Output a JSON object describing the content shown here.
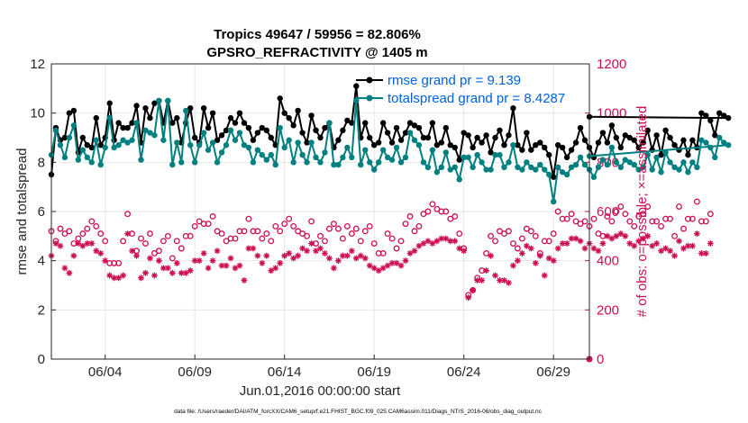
{
  "chart_data": {
    "type": "line",
    "title": "Tropics 49647 / 59956 = 82.806%",
    "subtitle": "GPSRO_REFRACTIVITY @ 1405 m",
    "xlabel": "Jun.01,2016 00:00:00 start",
    "ylabel": "rmse and totalspread",
    "y2label": "# of obs: o=possible; ×=assimilated",
    "xlim": [
      1,
      31
    ],
    "ylim": [
      0,
      12
    ],
    "y2lim": [
      0,
      1200
    ],
    "xticks": [
      {
        "value": 4,
        "label": "06/04"
      },
      {
        "value": 9,
        "label": "06/09"
      },
      {
        "value": 14,
        "label": "06/14"
      },
      {
        "value": 19,
        "label": "06/19"
      },
      {
        "value": 24,
        "label": "06/24"
      },
      {
        "value": 29,
        "label": "06/29"
      }
    ],
    "yticks": [
      "0",
      "2",
      "4",
      "6",
      "8",
      "10",
      "12"
    ],
    "y2ticks": [
      "0",
      "200",
      "400",
      "600",
      "800",
      "1000",
      "1200"
    ],
    "footnote": "data file: /Users/raeder/DAI/ATM_forcXX/CAM6_setup/f.e21.FHIST_BGC.f09_025.CAM6assim.011/Diags_NTrS_2016-06/obs_diag_output.nc",
    "x_start": 1.0,
    "x_step": 0.25,
    "series": [
      {
        "name": "rmse",
        "legend": "rmse grand pr = 9.139",
        "axis": "left",
        "color": "#000000",
        "values": [
          7.5,
          9.4,
          8.9,
          9.0,
          10.0,
          10.1,
          8.4,
          9.0,
          8.7,
          8.6,
          9.8,
          8.7,
          9.0,
          10.4,
          8.9,
          9.6,
          9.4,
          9.4,
          9.6,
          10.3,
          8.8,
          10.2,
          9.8,
          10.4,
          10.5,
          9.6,
          10.5,
          9.6,
          9.8,
          8.8,
          9.6,
          10.2,
          9.0,
          8.8,
          10.2,
          9.4,
          10.0,
          8.9,
          9.1,
          9.3,
          9.8,
          9.6,
          10.0,
          9.6,
          9.4,
          8.9,
          9.2,
          9.4,
          9.3,
          9.0,
          8.7,
          10.6,
          10.0,
          9.8,
          9.5,
          10.1,
          9.2,
          8.8,
          9.9,
          9.3,
          9.0,
          9.4,
          9.6,
          8.6,
          8.9,
          9.3,
          9.7,
          9.6,
          11.1,
          9.0,
          9.6,
          9.0,
          8.7,
          8.8,
          9.6,
          9.2,
          8.8,
          9.4,
          8.9,
          9.2,
          9.6,
          9.5,
          9.4,
          9.0,
          9.0,
          9.6,
          8.7,
          8.8,
          9.4,
          8.7,
          8.6,
          8.1,
          9.2,
          9.1,
          8.6,
          9.0,
          8.8,
          9.1,
          8.4,
          9.0,
          9.3,
          8.7,
          9.1,
          10.2,
          8.7,
          8.5,
          9.2,
          8.5,
          8.7,
          8.8,
          8.6,
          8.3,
          7.4,
          8.7,
          8.6,
          8.2,
          8.5,
          8.8,
          9.4,
          8.9,
          8.6,
          8.2,
          8.8,
          9.2,
          8.8,
          9.5,
          9.0,
          8.6,
          9.1,
          9.0,
          8.9,
          8.6,
          8.8,
          9.3,
          8.5,
          9.1,
          8.3,
          9.3,
          9.0,
          8.7,
          8.5,
          8.9,
          8.3,
          8.9,
          8.6,
          10.0,
          9.9,
          9.7,
          9.1,
          10.0,
          9.9,
          9.8
        ],
        "last_value": 9.85
      },
      {
        "name": "totalspread",
        "legend": "totalspread grand pr = 8.4287",
        "axis": "left",
        "color": "#008080",
        "values": [
          8.3,
          9.3,
          8.7,
          8.2,
          9.0,
          9.5,
          8.1,
          8.5,
          8.2,
          8.0,
          8.9,
          7.9,
          8.6,
          9.8,
          8.6,
          8.7,
          8.9,
          8.8,
          8.9,
          9.6,
          8.1,
          9.3,
          9.2,
          9.1,
          10.5,
          8.9,
          10.5,
          7.9,
          8.8,
          8.0,
          10.1,
          8.7,
          8.0,
          8.7,
          9.2,
          8.5,
          8.8,
          8.0,
          8.4,
          8.7,
          9.3,
          8.9,
          9.2,
          8.7,
          8.6,
          8.0,
          8.5,
          8.3,
          8.1,
          8.3,
          7.9,
          9.4,
          8.6,
          8.9,
          8.0,
          8.8,
          8.3,
          8.0,
          8.8,
          8.2,
          8.0,
          8.4,
          9.6,
          7.9,
          7.9,
          8.2,
          8.6,
          8.2,
          10.5,
          7.9,
          8.5,
          8.0,
          7.7,
          8.0,
          8.5,
          8.2,
          8.1,
          8.6,
          8.0,
          8.2,
          9.2,
          8.9,
          8.7,
          8.0,
          7.8,
          8.5,
          7.6,
          7.8,
          8.4,
          7.7,
          7.8,
          7.3,
          8.2,
          8.2,
          7.8,
          8.3,
          8.0,
          7.7,
          7.7,
          8.3,
          8.3,
          7.8,
          8.0,
          8.7,
          7.8,
          7.7,
          8.0,
          7.8,
          7.7,
          7.9,
          7.7,
          7.5,
          6.4,
          7.8,
          7.6,
          7.5,
          7.8,
          7.9,
          8.2,
          7.9,
          7.7,
          7.4,
          7.8,
          8.1,
          7.9,
          8.6,
          8.0,
          7.8,
          8.1,
          8.0,
          7.9,
          7.7,
          7.8,
          8.3,
          7.7,
          8.2,
          7.6,
          8.4,
          8.0,
          7.8,
          7.7,
          8.0,
          7.6,
          8.0,
          7.8,
          8.9,
          8.8,
          8.6,
          8.2,
          9.0,
          8.8,
          8.7
        ],
        "last_value": 8.25
      },
      {
        "name": "obs possible",
        "marker": "o",
        "axis": "right",
        "color": "#cc0f52",
        "values": [
          520,
          480,
          530,
          510,
          520,
          470,
          490,
          510,
          530,
          560,
          540,
          510,
          480,
          390,
          390,
          390,
          480,
          590,
          510,
          440,
          490,
          470,
          510,
          430,
          440,
          480,
          500,
          410,
          480,
          450,
          500,
          500,
          540,
          560,
          550,
          550,
          580,
          520,
          510,
          480,
          490,
          490,
          520,
          520,
          570,
          520,
          520,
          490,
          510,
          480,
          540,
          520,
          550,
          570,
          540,
          520,
          510,
          500,
          560,
          470,
          500,
          480,
          530,
          550,
          530,
          490,
          540,
          510,
          530,
          480,
          520,
          540,
          470,
          430,
          430,
          510,
          490,
          450,
          480,
          550,
          580,
          520,
          540,
          590,
          600,
          630,
          610,
          600,
          600,
          570,
          580,
          510,
          450,
          260,
          280,
          330,
          360,
          430,
          500,
          480,
          520,
          510,
          520,
          470,
          450,
          490,
          530,
          520,
          500,
          430,
          480,
          480,
          510,
          600,
          570,
          570,
          590,
          560,
          550,
          560,
          540,
          570,
          510,
          500,
          580,
          560,
          600,
          620,
          590,
          560,
          540,
          580,
          590,
          620,
          560,
          560,
          540,
          570,
          570,
          500,
          620,
          530,
          570,
          570,
          640,
          560,
          560,
          590
        ],
        "last_value": 0
      },
      {
        "name": "obs assimilated",
        "marker": "*",
        "axis": "right",
        "color": "#cc0f52",
        "values": [
          420,
          470,
          460,
          370,
          350,
          420,
          470,
          460,
          470,
          470,
          440,
          430,
          400,
          340,
          330,
          330,
          340,
          510,
          440,
          420,
          330,
          350,
          410,
          340,
          400,
          370,
          370,
          350,
          390,
          350,
          350,
          360,
          400,
          400,
          430,
          370,
          400,
          440,
          380,
          380,
          410,
          370,
          380,
          320,
          450,
          450,
          420,
          390,
          420,
          360,
          370,
          390,
          420,
          430,
          410,
          420,
          450,
          440,
          470,
          440,
          450,
          430,
          410,
          370,
          400,
          420,
          420,
          440,
          410,
          420,
          410,
          380,
          370,
          360,
          370,
          380,
          390,
          390,
          380,
          400,
          430,
          440,
          460,
          470,
          480,
          470,
          480,
          490,
          490,
          480,
          480,
          450,
          440,
          250,
          280,
          320,
          320,
          360,
          420,
          340,
          320,
          320,
          310,
          380,
          400,
          430,
          460,
          450,
          390,
          420,
          340,
          410,
          400,
          450,
          470,
          470,
          490,
          490,
          480,
          450,
          470,
          450,
          440,
          470,
          500,
          490,
          500,
          510,
          500,
          470,
          460,
          480,
          490,
          500,
          460,
          470,
          440,
          450,
          440,
          420,
          480,
          450,
          460,
          460,
          510,
          430,
          430,
          470
        ],
        "last_value": 0
      }
    ]
  }
}
